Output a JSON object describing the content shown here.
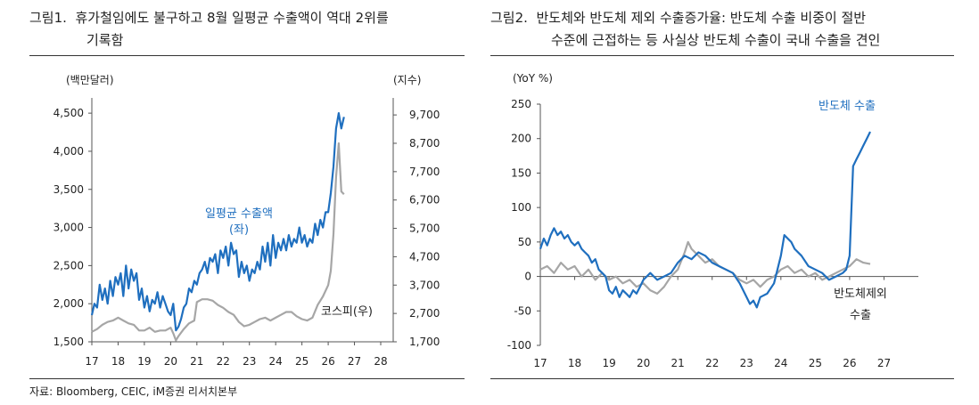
{
  "figures": [
    {
      "label": "그림1.",
      "title_line1": "휴가철임에도 불구하고 8월 일평균 수출액이 역대 2위를",
      "title_line2": "기록함",
      "unit_left": "(백만달러)",
      "unit_right": "(지수)"
    },
    {
      "label": "그림2.",
      "title_line1": "반도체와 반도체 제외 수출증가율: 반도체 수출 비중이 절반",
      "title_line2": "수준에 근접하는 등 사실상 반도체 수출이 국내 수출을 견인",
      "unit_left": "(YoY %)"
    }
  ],
  "source": "자료: Bloomberg, CEIC, iM증권 리서치본부",
  "colors": {
    "blue": "#1f6fbf",
    "gray": "#a6a6a6",
    "axis": "#555555"
  },
  "chart_data": [
    {
      "type": "line",
      "x_ticks": [
        "17",
        "18",
        "19",
        "20",
        "21",
        "22",
        "23",
        "24",
        "25",
        "26",
        "27",
        "28"
      ],
      "x_range": [
        2017,
        2028
      ],
      "y_left_range": [
        1500,
        4700
      ],
      "y_left_ticks": [
        "1,500",
        "2,000",
        "2,500",
        "3,000",
        "3,500",
        "4,000",
        "4,500"
      ],
      "y_left_values": [
        1500,
        2000,
        2500,
        3000,
        3500,
        4000,
        4500
      ],
      "y_right_range": [
        1700,
        10300
      ],
      "y_right_ticks": [
        "1,700",
        "2,700",
        "3,700",
        "4,700",
        "5,700",
        "6,700",
        "7,700",
        "8,700",
        "9,700"
      ],
      "y_right_values": [
        1700,
        2700,
        3700,
        4700,
        5700,
        6700,
        7700,
        8700,
        9700
      ],
      "grid": false,
      "series": [
        {
          "name": "일평균 수출액",
          "name_sub": "(좌)",
          "axis": "left",
          "color": "#1f6fbf",
          "x": [
            2017.0,
            2017.1,
            2017.2,
            2017.3,
            2017.4,
            2017.5,
            2017.6,
            2017.7,
            2017.8,
            2017.9,
            2018.0,
            2018.1,
            2018.2,
            2018.3,
            2018.4,
            2018.5,
            2018.6,
            2018.7,
            2018.8,
            2018.9,
            2019.0,
            2019.1,
            2019.2,
            2019.3,
            2019.4,
            2019.5,
            2019.6,
            2019.7,
            2019.8,
            2019.9,
            2020.0,
            2020.1,
            2020.2,
            2020.3,
            2020.4,
            2020.5,
            2020.6,
            2020.7,
            2020.8,
            2020.9,
            2021.0,
            2021.1,
            2021.2,
            2021.3,
            2021.4,
            2021.5,
            2021.6,
            2021.7,
            2021.8,
            2021.9,
            2022.0,
            2022.1,
            2022.2,
            2022.3,
            2022.4,
            2022.5,
            2022.6,
            2022.7,
            2022.8,
            2022.9,
            2023.0,
            2023.1,
            2023.2,
            2023.3,
            2023.4,
            2023.5,
            2023.6,
            2023.7,
            2023.8,
            2023.9,
            2024.0,
            2024.1,
            2024.2,
            2024.3,
            2024.4,
            2024.5,
            2024.6,
            2024.7,
            2024.8,
            2024.9,
            2025.0,
            2025.1,
            2025.2,
            2025.3,
            2025.4,
            2025.5,
            2025.6,
            2025.7,
            2025.8,
            2025.9,
            2026.0,
            2026.1,
            2026.2,
            2026.3,
            2026.4,
            2026.5,
            2026.6
          ],
          "values": [
            1850,
            2000,
            1950,
            2250,
            2050,
            2200,
            2000,
            2300,
            2100,
            2350,
            2250,
            2400,
            2100,
            2500,
            2200,
            2450,
            2300,
            2400,
            2050,
            2200,
            1950,
            2100,
            1900,
            2050,
            2000,
            2150,
            1950,
            2100,
            2000,
            1900,
            1850,
            2000,
            1650,
            1700,
            1800,
            1950,
            2000,
            2200,
            2150,
            2300,
            2250,
            2400,
            2450,
            2550,
            2400,
            2600,
            2550,
            2650,
            2400,
            2700,
            2600,
            2750,
            2500,
            2800,
            2650,
            2700,
            2350,
            2550,
            2400,
            2500,
            2300,
            2450,
            2400,
            2550,
            2450,
            2750,
            2550,
            2800,
            2500,
            2900,
            2600,
            2800,
            2700,
            2850,
            2700,
            2900,
            2750,
            2850,
            2800,
            3000,
            2800,
            2900,
            2750,
            2850,
            2800,
            3050,
            2900,
            3100,
            3000,
            3200,
            3200,
            3450,
            3800,
            4300,
            4500,
            4300,
            4450
          ]
        },
        {
          "name": "코스피(우)",
          "axis": "right",
          "color": "#a6a6a6",
          "x": [
            2017.0,
            2017.2,
            2017.4,
            2017.6,
            2017.8,
            2018.0,
            2018.2,
            2018.4,
            2018.6,
            2018.8,
            2019.0,
            2019.2,
            2019.4,
            2019.6,
            2019.8,
            2020.0,
            2020.1,
            2020.2,
            2020.3,
            2020.5,
            2020.7,
            2020.9,
            2021.0,
            2021.2,
            2021.4,
            2021.6,
            2021.8,
            2022.0,
            2022.2,
            2022.4,
            2022.6,
            2022.8,
            2023.0,
            2023.2,
            2023.4,
            2023.6,
            2023.8,
            2024.0,
            2024.2,
            2024.4,
            2024.6,
            2024.8,
            2025.0,
            2025.2,
            2025.4,
            2025.6,
            2025.8,
            2026.0,
            2026.1,
            2026.2,
            2026.3,
            2026.4,
            2026.5,
            2026.6
          ],
          "values": [
            2050,
            2150,
            2300,
            2400,
            2450,
            2550,
            2450,
            2350,
            2300,
            2100,
            2100,
            2200,
            2050,
            2100,
            2100,
            2200,
            2000,
            1750,
            1900,
            2150,
            2350,
            2450,
            3100,
            3200,
            3200,
            3150,
            3000,
            2900,
            2750,
            2650,
            2400,
            2250,
            2300,
            2400,
            2500,
            2550,
            2450,
            2550,
            2650,
            2750,
            2750,
            2600,
            2500,
            2450,
            2550,
            3000,
            3300,
            3700,
            4200,
            5500,
            7500,
            8700,
            7000,
            6900
          ]
        }
      ],
      "annotations": [
        "일평균 수출액",
        "(좌)",
        "코스피(우)"
      ]
    },
    {
      "type": "line",
      "x_ticks": [
        "17",
        "18",
        "19",
        "20",
        "21",
        "22",
        "23",
        "24",
        "25",
        "26",
        "27"
      ],
      "x_range": [
        2017,
        2028
      ],
      "y_range": [
        -100,
        250
      ],
      "y_ticks": [
        "-100",
        "-50",
        "0",
        "50",
        "100",
        "150",
        "200",
        "250"
      ],
      "y_values": [
        -100,
        -50,
        0,
        50,
        100,
        150,
        200,
        250
      ],
      "grid": false,
      "series": [
        {
          "name": "반도체 수출",
          "color": "#1f6fbf",
          "x": [
            2017.0,
            2017.1,
            2017.2,
            2017.3,
            2017.4,
            2017.5,
            2017.6,
            2017.7,
            2017.8,
            2017.9,
            2018.0,
            2018.1,
            2018.2,
            2018.3,
            2018.4,
            2018.5,
            2018.6,
            2018.7,
            2018.8,
            2018.9,
            2019.0,
            2019.1,
            2019.2,
            2019.3,
            2019.4,
            2019.5,
            2019.6,
            2019.7,
            2019.8,
            2019.9,
            2020.0,
            2020.2,
            2020.4,
            2020.6,
            2020.8,
            2021.0,
            2021.2,
            2021.4,
            2021.6,
            2021.8,
            2022.0,
            2022.2,
            2022.4,
            2022.6,
            2022.8,
            2023.0,
            2023.1,
            2023.2,
            2023.3,
            2023.4,
            2023.6,
            2023.8,
            2024.0,
            2024.1,
            2024.2,
            2024.3,
            2024.4,
            2024.6,
            2024.8,
            2025.0,
            2025.2,
            2025.4,
            2025.6,
            2025.8,
            2025.9,
            2026.0,
            2026.1,
            2026.2,
            2026.3,
            2026.4,
            2026.5,
            2026.6
          ],
          "values": [
            40,
            55,
            45,
            60,
            70,
            60,
            65,
            55,
            60,
            50,
            45,
            50,
            40,
            35,
            30,
            20,
            25,
            10,
            5,
            0,
            -20,
            -25,
            -15,
            -30,
            -20,
            -25,
            -30,
            -20,
            -25,
            -15,
            -5,
            5,
            -5,
            0,
            5,
            20,
            30,
            25,
            35,
            30,
            20,
            15,
            10,
            5,
            -10,
            -30,
            -40,
            -35,
            -45,
            -30,
            -25,
            -10,
            30,
            60,
            55,
            50,
            40,
            30,
            15,
            10,
            5,
            -5,
            0,
            5,
            10,
            30,
            160,
            170,
            180,
            190,
            200,
            210
          ]
        },
        {
          "name": "반도체제외 수출",
          "name_line1": "반도체제외",
          "name_line2": "수출",
          "color": "#a6a6a6",
          "x": [
            2017.0,
            2017.2,
            2017.4,
            2017.6,
            2017.8,
            2018.0,
            2018.2,
            2018.4,
            2018.6,
            2018.8,
            2019.0,
            2019.2,
            2019.4,
            2019.6,
            2019.8,
            2020.0,
            2020.2,
            2020.4,
            2020.6,
            2020.8,
            2021.0,
            2021.2,
            2021.3,
            2021.4,
            2021.6,
            2021.8,
            2022.0,
            2022.2,
            2022.4,
            2022.6,
            2022.8,
            2023.0,
            2023.2,
            2023.4,
            2023.6,
            2023.8,
            2024.0,
            2024.2,
            2024.4,
            2024.6,
            2024.8,
            2025.0,
            2025.2,
            2025.4,
            2025.6,
            2025.8,
            2026.0,
            2026.2,
            2026.4,
            2026.6
          ],
          "values": [
            10,
            15,
            5,
            20,
            10,
            15,
            0,
            10,
            -5,
            5,
            -5,
            0,
            -10,
            -5,
            -15,
            -10,
            -20,
            -25,
            -15,
            0,
            10,
            35,
            50,
            40,
            30,
            20,
            25,
            15,
            10,
            5,
            -5,
            -10,
            -5,
            -15,
            -5,
            0,
            10,
            15,
            5,
            10,
            0,
            5,
            -5,
            0,
            5,
            10,
            15,
            25,
            20,
            18
          ]
        }
      ],
      "annotations": [
        "반도체 수출",
        "반도체제외",
        "수출"
      ]
    }
  ]
}
